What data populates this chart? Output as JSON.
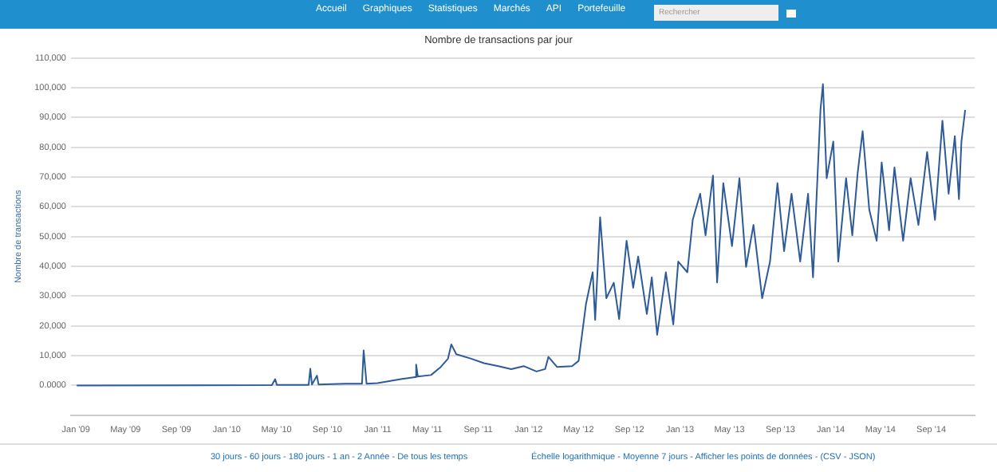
{
  "chart_data": {
    "type": "line",
    "title": "Nombre de transactions par jour",
    "ylabel": "Nombre de transactions",
    "annotations": [
      "Accueil",
      "Graphiques",
      "Statistiques",
      "Marchés",
      "API",
      "Portefeuille",
      "Rechercher",
      "30 jours - 60 jours - 180 jours - 1 an - 2 Année - De tous les temps",
      "Échelle logarithmique - Moyenne 7 jours - Afficher les points de données - (CSV - JSON)"
    ],
    "xlim": [
      "2008-12-20",
      "2014-12-15"
    ],
    "xticks": [
      {
        "value": "2009-01-01",
        "label": "Jan '09"
      },
      {
        "value": "2009-05-01",
        "label": "May '09"
      },
      {
        "value": "2009-09-01",
        "label": "Sep '09"
      },
      {
        "value": "2010-01-01",
        "label": "Jan '10"
      },
      {
        "value": "2010-05-01",
        "label": "May '10"
      },
      {
        "value": "2010-09-01",
        "label": "Sep '10"
      },
      {
        "value": "2011-01-01",
        "label": "Jan '11"
      },
      {
        "value": "2011-05-01",
        "label": "May '11"
      },
      {
        "value": "2011-09-01",
        "label": "Sep '11"
      },
      {
        "value": "2012-01-01",
        "label": "Jan '12"
      },
      {
        "value": "2012-05-01",
        "label": "May '12"
      },
      {
        "value": "2012-09-01",
        "label": "Sep '12"
      },
      {
        "value": "2013-01-01",
        "label": "Jan '13"
      },
      {
        "value": "2013-05-01",
        "label": "May '13"
      },
      {
        "value": "2013-09-01",
        "label": "Sep '13"
      },
      {
        "value": "2014-01-01",
        "label": "Jan '14"
      },
      {
        "value": "2014-05-01",
        "label": "May '14"
      },
      {
        "value": "2014-09-01",
        "label": "Sep '14"
      }
    ],
    "ylim": [
      -10000,
      110000
    ],
    "yticks": [
      {
        "value": 0,
        "label": "0.0000"
      },
      {
        "value": 10000,
        "label": "10,000"
      },
      {
        "value": 20000,
        "label": "20,000"
      },
      {
        "value": 30000,
        "label": "30,000"
      },
      {
        "value": 40000,
        "label": "40,000"
      },
      {
        "value": 50000,
        "label": "50,000"
      },
      {
        "value": 60000,
        "label": "60,000"
      },
      {
        "value": 70000,
        "label": "70,000"
      },
      {
        "value": 80000,
        "label": "80,000"
      },
      {
        "value": 90000,
        "label": "90,000"
      },
      {
        "value": 100000,
        "label": "100,000"
      },
      {
        "value": 110000,
        "label": "110,000"
      }
    ],
    "grid": "y",
    "legend": false,
    "marker": "none",
    "line_style": "solid",
    "x": [
      "2009-01-03",
      "2010-04-20",
      "2010-04-28",
      "2010-05-02",
      "2010-07-18",
      "2010-07-22",
      "2010-07-26",
      "2010-08-07",
      "2010-08-11",
      "2010-10-15",
      "2010-11-24",
      "2010-11-28",
      "2010-12-05",
      "2011-01-01",
      "2011-03-01",
      "2011-04-01",
      "2011-04-04",
      "2011-04-08",
      "2011-05-10",
      "2011-06-01",
      "2011-06-20",
      "2011-06-28",
      "2011-07-10",
      "2011-08-15",
      "2011-09-15",
      "2011-10-20",
      "2011-11-20",
      "2011-12-20",
      "2012-01-20",
      "2012-02-10",
      "2012-02-18",
      "2012-03-10",
      "2012-04-15",
      "2012-05-01",
      "2012-05-19",
      "2012-06-04",
      "2012-06-10",
      "2012-06-22",
      "2012-07-07",
      "2012-07-25",
      "2012-08-07",
      "2012-08-25",
      "2012-09-10",
      "2012-09-22",
      "2012-10-13",
      "2012-10-25",
      "2012-11-07",
      "2012-11-28",
      "2012-12-16",
      "2012-12-28",
      "2013-01-19",
      "2013-02-01",
      "2013-02-19",
      "2013-03-04",
      "2013-03-22",
      "2013-04-01",
      "2013-04-16",
      "2013-05-07",
      "2013-05-25",
      "2013-06-10",
      "2013-06-28",
      "2013-07-19",
      "2013-08-07",
      "2013-08-25",
      "2013-09-10",
      "2013-09-28",
      "2013-10-19",
      "2013-11-07",
      "2013-11-19",
      "2013-12-07",
      "2013-12-13",
      "2013-12-22",
      "2014-01-07",
      "2014-01-16",
      "2014-01-19",
      "2014-02-07",
      "2014-02-22",
      "2014-03-07",
      "2014-03-19",
      "2014-04-04",
      "2014-04-22",
      "2014-05-04",
      "2014-05-22",
      "2014-06-04",
      "2014-06-25",
      "2014-07-13",
      "2014-08-01",
      "2014-08-22",
      "2014-09-10",
      "2014-09-28",
      "2014-10-13",
      "2014-10-28",
      "2014-11-07",
      "2014-11-13",
      "2014-11-22"
    ],
    "series": [
      {
        "color": "#2d5a98",
        "values": [
          0,
          100,
          2100,
          200,
          200,
          5600,
          300,
          3300,
          300,
          600,
          600,
          11750,
          600,
          800,
          2200,
          2800,
          7000,
          3000,
          3500,
          6000,
          9000,
          13800,
          10500,
          9000,
          7500,
          6500,
          5500,
          6500,
          4700,
          5500,
          9600,
          6200,
          6500,
          8250,
          27500,
          38000,
          22000,
          56500,
          29300,
          34500,
          22300,
          48600,
          32800,
          43300,
          24000,
          36300,
          17000,
          38000,
          20500,
          41600,
          38000,
          55600,
          64400,
          50400,
          70500,
          34600,
          67900,
          46800,
          69600,
          39800,
          53900,
          29300,
          41600,
          67900,
          45100,
          64400,
          41600,
          64400,
          36300,
          92500,
          101200,
          69600,
          81900,
          52100,
          41600,
          69600,
          50400,
          71400,
          85400,
          59100,
          48600,
          74900,
          52100,
          73200,
          48600,
          69600,
          53900,
          78400,
          55600,
          88900,
          64400,
          83700,
          62600,
          81900,
          92500
        ]
      }
    ]
  }
}
